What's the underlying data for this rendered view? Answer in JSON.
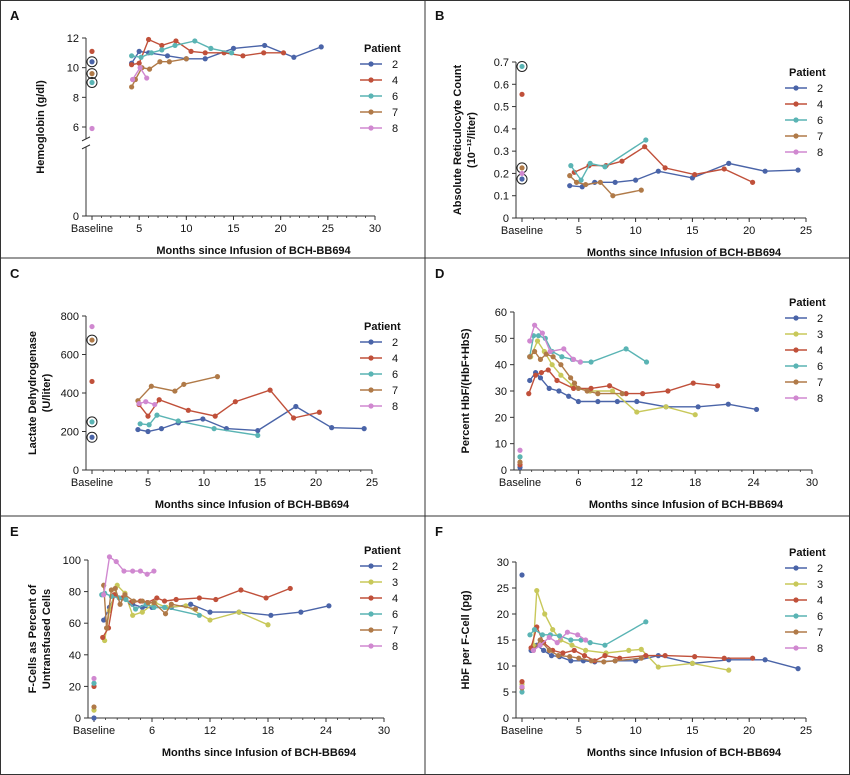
{
  "figure": {
    "legend_title": "Patient",
    "colors": {
      "2": "#4a64a8",
      "3": "#c8c85a",
      "4": "#c0503a",
      "6": "#5ab4b4",
      "7": "#b07a48",
      "8": "#d088d0"
    }
  },
  "chart_data": [
    {
      "id": "A",
      "type": "line",
      "letter": "A",
      "ylabel": "Hemoglobin (g/dl)",
      "xlabel": "Months since Infusion of BCH-BB694",
      "x_baseline_label": "Baseline",
      "xticks": [
        "5",
        "10",
        "15",
        "20",
        "25",
        "30"
      ],
      "yticks": [
        "0",
        "6",
        "8",
        "10",
        "12"
      ],
      "xlim": [
        0,
        30
      ],
      "ylim": [
        0,
        12
      ],
      "y_axis_break": true,
      "legend": [
        "2",
        "4",
        "6",
        "7",
        "8"
      ],
      "baseline_circled": [
        "2",
        "6",
        "7"
      ],
      "series": [
        {
          "name": "2",
          "baseline": 10.4,
          "x": [
            4.2,
            5,
            6,
            8,
            10,
            12,
            15,
            18.3,
            21.4,
            24.3
          ],
          "y": [
            10.3,
            11.1,
            11.0,
            10.8,
            10.6,
            10.6,
            11.3,
            11.5,
            10.7,
            11.4
          ]
        },
        {
          "name": "4",
          "baseline": 11.1,
          "x": [
            4.2,
            5,
            6,
            7.4,
            8.9,
            10.5,
            12,
            14,
            16,
            18.2,
            20.3
          ],
          "y": [
            10.2,
            10.3,
            11.9,
            11.5,
            11.8,
            11.1,
            11.0,
            11.0,
            10.8,
            11.0,
            11.0
          ]
        },
        {
          "name": "6",
          "baseline": 9.0,
          "x": [
            4.2,
            5.2,
            6.3,
            7.4,
            8.8,
            10.9,
            12.6,
            14.8
          ],
          "y": [
            10.8,
            10.7,
            11.0,
            11.2,
            11.5,
            11.8,
            11.3,
            11.0
          ]
        },
        {
          "name": "7",
          "baseline": 9.6,
          "x": [
            4.2,
            4.6,
            5.3,
            6.1,
            7.2,
            8.2,
            10.0
          ],
          "y": [
            8.7,
            9.2,
            10.0,
            9.9,
            10.4,
            10.4,
            10.6
          ]
        },
        {
          "name": "8",
          "baseline": 5.9,
          "x": [
            4.3,
            5.1,
            5.8
          ],
          "y": [
            9.2,
            10.0,
            9.3
          ]
        }
      ]
    },
    {
      "id": "B",
      "type": "line",
      "letter": "B",
      "ylabel": "Absolute Reticulocyte Count",
      "ylabel2": "(10⁻¹²/liter)",
      "xlabel": "Months since Infusion of BCH-BB694",
      "x_baseline_label": "Baseline",
      "xticks": [
        "5",
        "10",
        "15",
        "20",
        "25"
      ],
      "yticks": [
        "0",
        "0.1",
        "0.2",
        "0.3",
        "0.4",
        "0.5",
        "0.6",
        "0.7"
      ],
      "xlim": [
        0,
        25
      ],
      "ylim": [
        0,
        0.7
      ],
      "legend": [
        "2",
        "4",
        "6",
        "7",
        "8"
      ],
      "baseline_circled": [
        "2",
        "6",
        "7"
      ],
      "series": [
        {
          "name": "2",
          "baseline": 0.175,
          "x": [
            4.2,
            5.3,
            6.4,
            8.2,
            10.0,
            12.0,
            15.0,
            18.2,
            21.4,
            24.3
          ],
          "y": [
            0.145,
            0.14,
            0.16,
            0.16,
            0.17,
            0.21,
            0.18,
            0.245,
            0.21,
            0.215
          ]
        },
        {
          "name": "4",
          "baseline": 0.555,
          "x": [
            4.6,
            5.9,
            7.4,
            8.8,
            10.8,
            12.6,
            15.2,
            17.8,
            20.3
          ],
          "y": [
            0.205,
            0.235,
            0.235,
            0.255,
            0.32,
            0.225,
            0.195,
            0.22,
            0.16
          ]
        },
        {
          "name": "6",
          "baseline": 0.68,
          "x": [
            4.3,
            5.2,
            6.0,
            7.3,
            10.9
          ],
          "y": [
            0.235,
            0.17,
            0.245,
            0.23,
            0.35
          ]
        },
        {
          "name": "7",
          "baseline": 0.225,
          "x": [
            4.2,
            4.8,
            5.6,
            6.9,
            8.0,
            10.5
          ],
          "y": [
            0.19,
            0.16,
            0.15,
            0.16,
            0.1,
            0.125
          ]
        },
        {
          "name": "8",
          "baseline": 0.2,
          "x": [],
          "y": []
        }
      ]
    },
    {
      "id": "C",
      "type": "line",
      "letter": "C",
      "ylabel": "Lactate Dehydrogenase",
      "ylabel2": "(U/liter)",
      "xlabel": "Months since Infusion of BCH-BB694",
      "x_baseline_label": "Baseline",
      "xticks": [
        "5",
        "10",
        "15",
        "20",
        "25"
      ],
      "yticks": [
        "0",
        "200",
        "400",
        "600",
        "800"
      ],
      "xlim": [
        0,
        25
      ],
      "ylim": [
        0,
        800
      ],
      "legend": [
        "2",
        "4",
        "6",
        "7",
        "8"
      ],
      "baseline_circled": [
        "2",
        "6",
        "7"
      ],
      "series": [
        {
          "name": "2",
          "baseline": 170,
          "x": [
            4.1,
            5.0,
            6.2,
            7.7,
            9.9,
            12.0,
            14.8,
            18.2,
            21.4,
            24.3
          ],
          "y": [
            210,
            200,
            215,
            245,
            265,
            215,
            205,
            330,
            220,
            215
          ]
        },
        {
          "name": "4",
          "baseline": 460,
          "x": [
            4.2,
            5.0,
            6.0,
            8.6,
            11.0,
            12.8,
            15.9,
            18.0,
            20.3
          ],
          "y": [
            340,
            280,
            365,
            310,
            280,
            355,
            415,
            270,
            300
          ]
        },
        {
          "name": "6",
          "baseline": 250,
          "x": [
            4.3,
            5.1,
            5.8,
            7.7,
            10.9,
            14.8
          ],
          "y": [
            240,
            235,
            285,
            255,
            215,
            180
          ]
        },
        {
          "name": "7",
          "baseline": 675,
          "x": [
            4.1,
            5.3,
            7.4,
            8.2,
            11.2
          ],
          "y": [
            360,
            435,
            410,
            445,
            485
          ]
        },
        {
          "name": "8",
          "baseline": 745,
          "x": [
            4.2,
            4.8,
            5.6
          ],
          "y": [
            345,
            355,
            340
          ]
        }
      ]
    },
    {
      "id": "D",
      "type": "line",
      "letter": "D",
      "ylabel": "Percent HbF/(HbF+HbS)",
      "xlabel": "Months since Infusion of BCH-BB694",
      "x_baseline_label": "Baseline",
      "xticks": [
        "6",
        "12",
        "18",
        "24",
        "30"
      ],
      "yticks": [
        "0",
        "10",
        "20",
        "30",
        "40",
        "50",
        "60"
      ],
      "xlim": [
        0,
        30
      ],
      "ylim": [
        0,
        60
      ],
      "legend": [
        "2",
        "3",
        "4",
        "6",
        "7",
        "8"
      ],
      "baseline_circled": [],
      "series": [
        {
          "name": "2",
          "baseline": 1,
          "x": [
            1.0,
            1.6,
            2.1,
            3.0,
            4.0,
            5.0,
            6.0,
            8.0,
            10.0,
            12.0,
            15.0,
            18.3,
            21.4,
            24.3
          ],
          "y": [
            34,
            37,
            35,
            31,
            30,
            28,
            26,
            26,
            26,
            26,
            24,
            24,
            25,
            23
          ]
        },
        {
          "name": "3",
          "baseline": 5,
          "x": [
            1.1,
            1.8,
            2.5,
            3.3,
            4.2,
            5.4,
            7.2,
            9.5,
            12.0,
            15.0,
            18.0
          ],
          "y": [
            43,
            49,
            45,
            40,
            36,
            32,
            30,
            30,
            22,
            24,
            21
          ]
        },
        {
          "name": "4",
          "baseline": 2,
          "x": [
            0.9,
            1.6,
            2.2,
            2.9,
            3.8,
            5.5,
            7.3,
            9.2,
            10.9,
            12.6,
            15.2,
            17.8,
            20.3
          ],
          "y": [
            29,
            36,
            37,
            38,
            34,
            31,
            31,
            32,
            29,
            29,
            30,
            33,
            32
          ]
        },
        {
          "name": "6",
          "baseline": 5,
          "x": [
            1.0,
            1.4,
            1.9,
            2.6,
            3.3,
            4.3,
            5.4,
            6.2,
            7.3,
            10.9,
            13.0
          ],
          "y": [
            43,
            51,
            51,
            50,
            45,
            43,
            42,
            41,
            41,
            46,
            41
          ]
        },
        {
          "name": "7",
          "baseline": 3,
          "x": [
            1.0,
            1.5,
            2.1,
            2.7,
            3.4,
            4.2,
            5.2,
            5.6,
            6.0,
            6.9,
            8.0,
            10.5
          ],
          "y": [
            43,
            45,
            42,
            44,
            43,
            40,
            35,
            33,
            31,
            30,
            29,
            29
          ]
        },
        {
          "name": "8",
          "baseline": 7.5,
          "x": [
            1.0,
            1.5,
            2.3,
            3.1,
            4.5,
            5.5,
            6.2
          ],
          "y": [
            49,
            55,
            52,
            45,
            46,
            42,
            41
          ]
        }
      ]
    },
    {
      "id": "E",
      "type": "line",
      "letter": "E",
      "ylabel": "F-Cells as Percent of",
      "ylabel2": "Untransfused Cells",
      "xlabel": "Months since Infusion of BCH-BB694",
      "x_baseline_label": "Baseline",
      "xticks": [
        "6",
        "12",
        "18",
        "24",
        "30"
      ],
      "yticks": [
        "0",
        "20",
        "40",
        "60",
        "80",
        "100"
      ],
      "xlim": [
        0,
        30
      ],
      "ylim": [
        0,
        100
      ],
      "legend": [
        "2",
        "3",
        "4",
        "6",
        "7",
        "8"
      ],
      "baseline_circled": [],
      "series": [
        {
          "name": "2",
          "baseline": 0,
          "x": [
            1.0,
            1.6,
            2.2,
            3.0,
            4.0,
            5.0,
            6.0,
            8.0,
            10.0,
            12.0,
            15.0,
            18.3,
            21.4,
            24.3
          ],
          "y": [
            62,
            70,
            78,
            76,
            72,
            70,
            70,
            70,
            72,
            67,
            67,
            65,
            67,
            71
          ]
        },
        {
          "name": "3",
          "baseline": 5,
          "x": [
            1.1,
            1.6,
            2.4,
            3.2,
            4.0,
            5.0,
            6.3,
            7.5,
            9.5,
            12.0,
            15.0,
            18.0
          ],
          "y": [
            49,
            68,
            84,
            79,
            65,
            67,
            73,
            70,
            71,
            62,
            67,
            59
          ]
        },
        {
          "name": "4",
          "baseline": 20,
          "x": [
            0.9,
            1.5,
            2.1,
            2.9,
            3.8,
            4.8,
            5.5,
            6.5,
            7.3,
            8.5,
            10.9,
            12.6,
            15.2,
            17.8,
            20.3
          ],
          "y": [
            51,
            57,
            78,
            76,
            73,
            74,
            73,
            76,
            74,
            75,
            76,
            75,
            81,
            76,
            82
          ]
        },
        {
          "name": "6",
          "baseline": 22,
          "x": [
            0.8,
            1.1,
            1.8,
            2.6,
            3.3,
            4.3,
            5.4,
            6.2,
            7.3,
            10.9
          ],
          "y": [
            78,
            79,
            77,
            76,
            75,
            69,
            72,
            70,
            70,
            65
          ]
        },
        {
          "name": "7",
          "baseline": 7,
          "x": [
            1.0,
            1.3,
            1.8,
            2.2,
            2.7,
            3.2,
            4.1,
            5.0,
            5.6,
            6.2,
            7.4,
            8.0,
            10.5
          ],
          "y": [
            84,
            57,
            81,
            82,
            72,
            78,
            74,
            74,
            73,
            73,
            66,
            72,
            69
          ]
        },
        {
          "name": "8",
          "baseline": 25,
          "x": [
            1.0,
            1.6,
            2.3,
            3.1,
            4.0,
            4.8,
            5.5,
            6.2
          ],
          "y": [
            78,
            102,
            99,
            93,
            93,
            93,
            91,
            93
          ]
        }
      ]
    },
    {
      "id": "F",
      "type": "line",
      "letter": "F",
      "ylabel": "HbF per F-Cell (pg)",
      "xlabel": "Months since Infusion of BCH-BB694",
      "x_baseline_label": "Baseline",
      "xticks": [
        "5",
        "10",
        "15",
        "20",
        "25"
      ],
      "yticks": [
        "0",
        "5",
        "10",
        "15",
        "20",
        "25",
        "30"
      ],
      "xlim": [
        0,
        25
      ],
      "ylim": [
        0,
        30
      ],
      "legend": [
        "2",
        "3",
        "4",
        "6",
        "7",
        "8"
      ],
      "baseline_circled": [],
      "series": [
        {
          "name": "2",
          "baseline": 27.5,
          "x": [
            0.8,
            1.3,
            1.9,
            2.6,
            3.3,
            4.3,
            5.4,
            6.4,
            8.2,
            10.0,
            12.0,
            15.0,
            18.2,
            21.4,
            24.3
          ],
          "y": [
            13,
            14,
            13,
            12,
            11.8,
            11,
            11,
            10.8,
            11,
            11,
            12,
            10.5,
            11.2,
            11.2,
            9.5
          ]
        },
        {
          "name": "3",
          "baseline": 6.5,
          "x": [
            1.0,
            1.3,
            2.0,
            2.7,
            3.4,
            4.4,
            5.6,
            7.4,
            9.4,
            10.5,
            12.0,
            15.0,
            18.2
          ],
          "y": [
            14,
            24.5,
            20,
            17,
            15,
            14,
            13,
            12.5,
            13,
            13.2,
            9.8,
            10.5,
            9.2
          ]
        },
        {
          "name": "4",
          "baseline": 7.0,
          "x": [
            0.8,
            1.3,
            1.9,
            2.7,
            3.6,
            4.6,
            5.5,
            6.4,
            7.3,
            8.6,
            10.9,
            12.6,
            15.2,
            17.8,
            20.3
          ],
          "y": [
            13.5,
            17.5,
            14.5,
            13,
            12.5,
            13,
            12,
            11,
            12,
            11.5,
            12,
            12,
            11.8,
            11.5,
            11.5
          ]
        },
        {
          "name": "6",
          "baseline": 5.0,
          "x": [
            0.7,
            1.1,
            1.8,
            2.5,
            3.3,
            4.3,
            5.2,
            6.0,
            7.3,
            10.9
          ],
          "y": [
            16,
            17,
            16,
            16,
            15.8,
            15,
            15,
            14.5,
            14,
            18.5
          ]
        },
        {
          "name": "7",
          "baseline": 5.8,
          "x": [
            1.0,
            1.6,
            2.4,
            3.2,
            4.2,
            5.0,
            6.1,
            7.2,
            8.2,
            10.5
          ],
          "y": [
            13,
            15,
            13,
            12,
            11.8,
            11.5,
            11,
            10.8,
            11,
            11.5
          ]
        },
        {
          "name": "8",
          "baseline": 6.0,
          "x": [
            1.0,
            1.6,
            2.4,
            3.1,
            4.0,
            4.9,
            5.6
          ],
          "y": [
            13,
            14,
            15.5,
            14.5,
            16.5,
            16,
            15
          ]
        }
      ]
    }
  ]
}
